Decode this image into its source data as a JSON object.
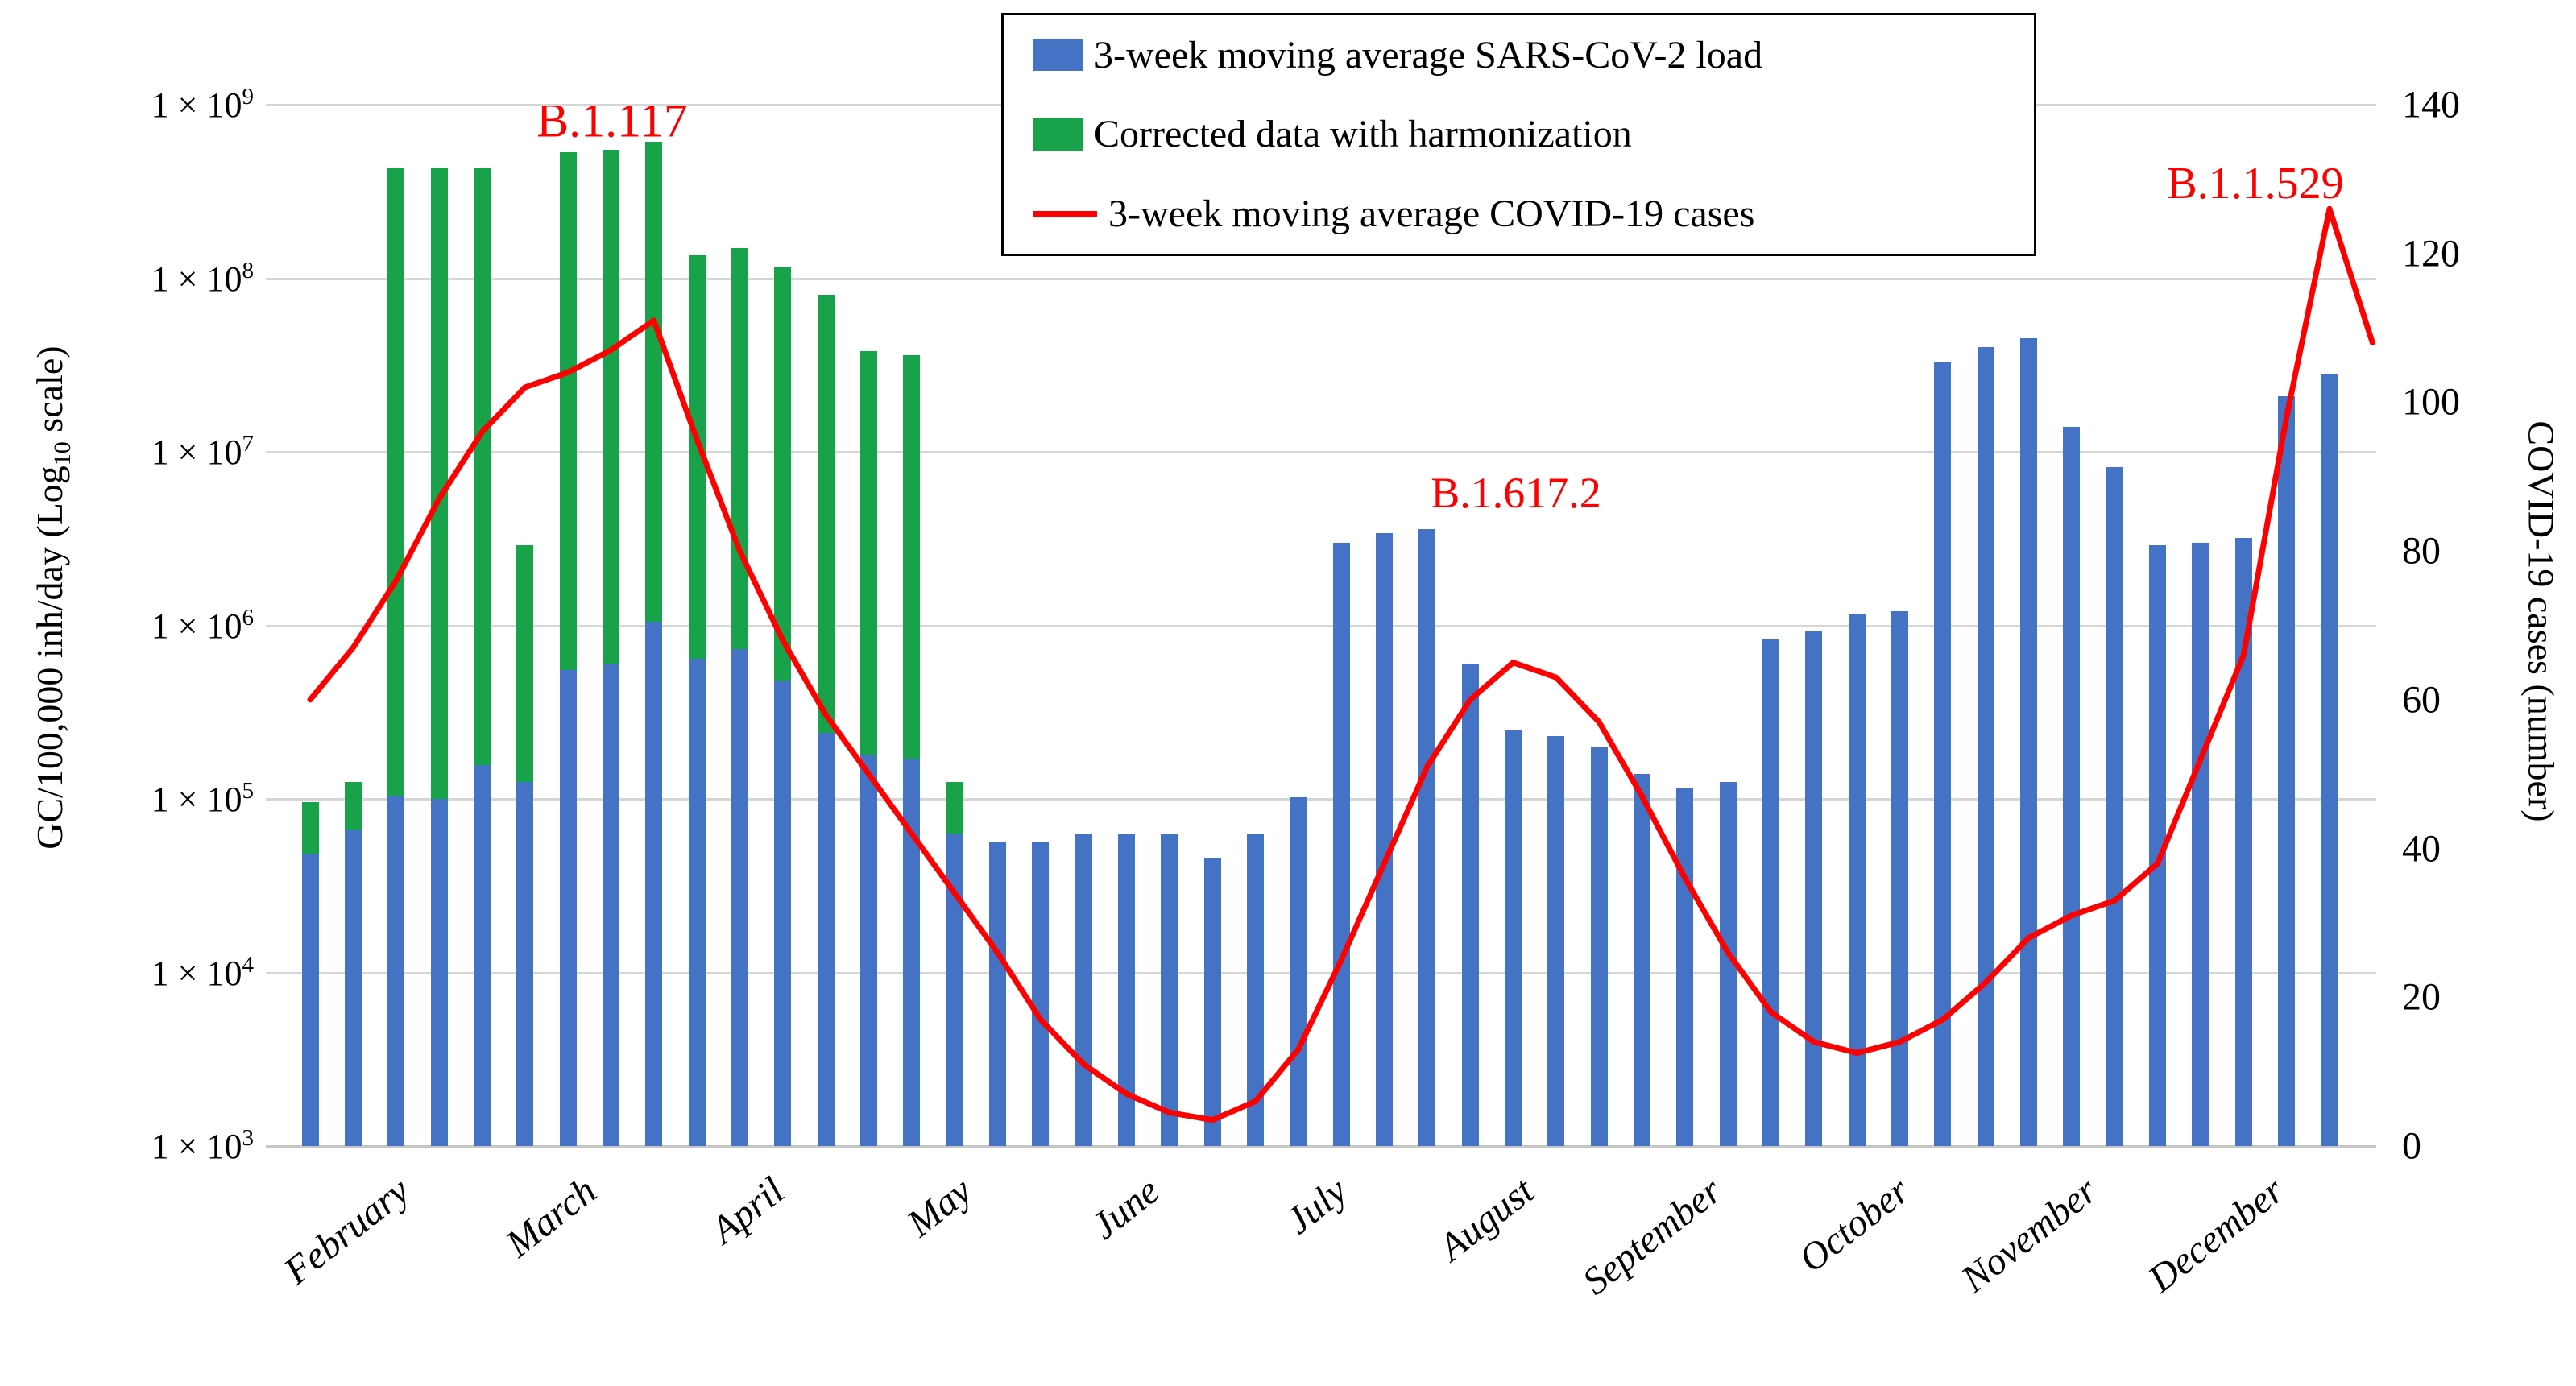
{
  "chart_data": {
    "type": "combo-bar-line",
    "title": "",
    "y_left": {
      "label_parts": {
        "prefix": "GC/100,000 inh/day (Log",
        "sub": "10",
        "suffix": " scale)"
      },
      "scale": "log10",
      "min": 1000,
      "max": 1000000000,
      "ticks": [
        {
          "m": "1 × 10",
          "e": 9
        },
        {
          "m": "1 × 10",
          "e": 8
        },
        {
          "m": "1 × 10",
          "e": 7
        },
        {
          "m": "1 × 10",
          "e": 6
        },
        {
          "m": "1 × 10",
          "e": 5
        },
        {
          "m": "1 × 10",
          "e": 4
        },
        {
          "m": "1 × 10",
          "e": 3
        }
      ]
    },
    "y_right": {
      "label": "COVID-19 cases (number)",
      "min": 0,
      "max": 140,
      "ticks": [
        140,
        120,
        100,
        80,
        60,
        40,
        20,
        0
      ]
    },
    "x_categories": [
      "February",
      "March",
      "April",
      "May",
      "June",
      "July",
      "August",
      "September",
      "October",
      "November",
      "December"
    ],
    "grid": true,
    "series": [
      {
        "name": "3-week moving average SARS-CoV-2 load",
        "type": "bar",
        "color": "#4472c4",
        "values": [
          48000,
          66000,
          103000,
          100000,
          157000,
          125000,
          550000,
          600000,
          1050000,
          640000,
          730000,
          480000,
          240000,
          180000,
          170000,
          63000,
          56000,
          56000,
          63000,
          63000,
          63000,
          46000,
          63000,
          102000,
          3000000,
          3400000,
          3600000,
          600000,
          250000,
          230000,
          200000,
          140000,
          115000,
          125000,
          830000,
          930000,
          1150000,
          1200000,
          33000000,
          40000000,
          45000000,
          14000000,
          8200000,
          2900000,
          3000000,
          3200000,
          21000000,
          28000000
        ]
      },
      {
        "name": "Corrected data with harmonization",
        "type": "bar",
        "color": "#18a24a",
        "values": [
          96000,
          125000,
          430000000,
          430000000,
          430000000,
          2900000,
          530000000,
          550000000,
          610000000,
          135000000,
          150000000,
          115000000,
          80000000,
          38000000,
          36000000,
          125000,
          null,
          null,
          null,
          null,
          null,
          null,
          null,
          null,
          null,
          null,
          null,
          null,
          null,
          null,
          null,
          null,
          null,
          null,
          null,
          null,
          null,
          null,
          null,
          null,
          null,
          null,
          null,
          null,
          null,
          null,
          null,
          null
        ]
      },
      {
        "name": "3-week moving average COVID-19 cases",
        "type": "line",
        "color": "#ff0000",
        "values": [
          60,
          67,
          76,
          87,
          96,
          102,
          104,
          107,
          111,
          95,
          80,
          68,
          58,
          50,
          42,
          34,
          26,
          17,
          11,
          7,
          4.5,
          3.5,
          6,
          13,
          25,
          38,
          51,
          60,
          65,
          63,
          57,
          47,
          36,
          26,
          18,
          14,
          12.5,
          14,
          17,
          22,
          28,
          31,
          33,
          38,
          52,
          66,
          98,
          126
        ],
        "end_point_value": 108
      }
    ],
    "annotations": [
      {
        "text": "B.1.117",
        "x": 760,
        "y": 150,
        "font_size": 60
      },
      {
        "text": "B.1.617.2",
        "x": 1882,
        "y": 612,
        "font_size": 54
      },
      {
        "text": "B.1.1.529",
        "x": 2800,
        "y": 228,
        "font_size": 56
      }
    ]
  },
  "legend": {
    "items": [
      {
        "label": "3-week moving average SARS-CoV-2 load",
        "swatch": "bar",
        "color": "#4472c4"
      },
      {
        "label": "Corrected data with harmonization",
        "swatch": "bar",
        "color": "#18a24a"
      },
      {
        "label": "3-week moving average COVID-19 cases",
        "swatch": "line",
        "color": "#ff0000"
      }
    ]
  },
  "colors": {
    "bar_blue": "#4472c4",
    "bar_green": "#18a24a",
    "line_red": "#ff0000",
    "gridline": "#d6d6d6"
  }
}
